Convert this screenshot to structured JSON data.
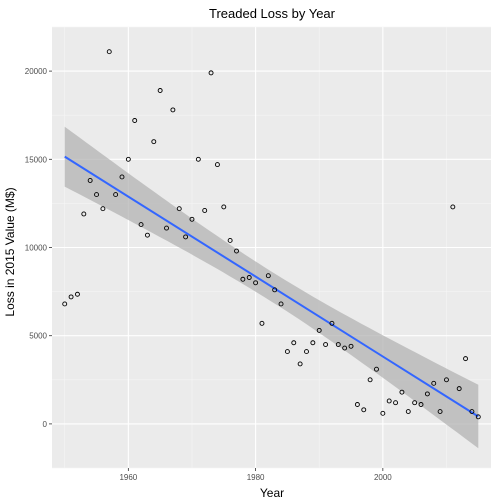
{
  "chart_data": {
    "type": "scatter",
    "title": "Treaded Loss by Year",
    "xlabel": "Year",
    "ylabel": "Loss in 2015 Value (M$)",
    "xlim": [
      1948,
      2017
    ],
    "ylim": [
      -2500,
      22500
    ],
    "xticks": [
      1960,
      1980,
      2000
    ],
    "yticks": [
      0,
      5000,
      10000,
      15000,
      20000
    ],
    "grid": true,
    "legend": "none",
    "trend": {
      "method": "linear",
      "x": [
        1950,
        2015
      ],
      "y": [
        15150,
        420
      ],
      "band_halfwidth": [
        1700,
        1800
      ],
      "band_mid_halfwidth": 850
    },
    "points": [
      {
        "x": 1950,
        "y": 6800
      },
      {
        "x": 1951,
        "y": 7200
      },
      {
        "x": 1952,
        "y": 7350
      },
      {
        "x": 1953,
        "y": 11900
      },
      {
        "x": 1954,
        "y": 13800
      },
      {
        "x": 1955,
        "y": 13000
      },
      {
        "x": 1956,
        "y": 12200
      },
      {
        "x": 1957,
        "y": 21100
      },
      {
        "x": 1958,
        "y": 13000
      },
      {
        "x": 1959,
        "y": 14000
      },
      {
        "x": 1960,
        "y": 15000
      },
      {
        "x": 1961,
        "y": 17200
      },
      {
        "x": 1962,
        "y": 11300
      },
      {
        "x": 1963,
        "y": 10700
      },
      {
        "x": 1964,
        "y": 16000
      },
      {
        "x": 1965,
        "y": 18900
      },
      {
        "x": 1966,
        "y": 11100
      },
      {
        "x": 1967,
        "y": 17800
      },
      {
        "x": 1968,
        "y": 12200
      },
      {
        "x": 1969,
        "y": 10600
      },
      {
        "x": 1970,
        "y": 11600
      },
      {
        "x": 1971,
        "y": 15000
      },
      {
        "x": 1972,
        "y": 12100
      },
      {
        "x": 1973,
        "y": 19900
      },
      {
        "x": 1974,
        "y": 14700
      },
      {
        "x": 1975,
        "y": 12300
      },
      {
        "x": 1976,
        "y": 10400
      },
      {
        "x": 1977,
        "y": 9800
      },
      {
        "x": 1978,
        "y": 8200
      },
      {
        "x": 1979,
        "y": 8300
      },
      {
        "x": 1980,
        "y": 8000
      },
      {
        "x": 1981,
        "y": 5700
      },
      {
        "x": 1982,
        "y": 8400
      },
      {
        "x": 1983,
        "y": 7600
      },
      {
        "x": 1984,
        "y": 6800
      },
      {
        "x": 1985,
        "y": 4100
      },
      {
        "x": 1986,
        "y": 4600
      },
      {
        "x": 1987,
        "y": 3400
      },
      {
        "x": 1988,
        "y": 4100
      },
      {
        "x": 1989,
        "y": 4600
      },
      {
        "x": 1990,
        "y": 5300
      },
      {
        "x": 1991,
        "y": 4500
      },
      {
        "x": 1992,
        "y": 5700
      },
      {
        "x": 1993,
        "y": 4500
      },
      {
        "x": 1994,
        "y": 4300
      },
      {
        "x": 1995,
        "y": 4400
      },
      {
        "x": 1996,
        "y": 1100
      },
      {
        "x": 1997,
        "y": 800
      },
      {
        "x": 1998,
        "y": 2500
      },
      {
        "x": 1999,
        "y": 3100
      },
      {
        "x": 2000,
        "y": 600
      },
      {
        "x": 2001,
        "y": 1300
      },
      {
        "x": 2002,
        "y": 1200
      },
      {
        "x": 2003,
        "y": 1800
      },
      {
        "x": 2004,
        "y": 700
      },
      {
        "x": 2005,
        "y": 1200
      },
      {
        "x": 2006,
        "y": 1100
      },
      {
        "x": 2007,
        "y": 1700
      },
      {
        "x": 2008,
        "y": 2300
      },
      {
        "x": 2009,
        "y": 700
      },
      {
        "x": 2010,
        "y": 2500
      },
      {
        "x": 2011,
        "y": 12300
      },
      {
        "x": 2012,
        "y": 2000
      },
      {
        "x": 2013,
        "y": 3700
      },
      {
        "x": 2014,
        "y": 700
      },
      {
        "x": 2015,
        "y": 400
      }
    ],
    "colors": {
      "panel_background": "#ebebeb",
      "grid_major": "#ffffff",
      "grid_minor": "#f5f5f5",
      "trend_line": "#3366ff",
      "confidence_band": "#b3b3b3",
      "point_stroke": "#000000",
      "tick_text": "#4d4d4d"
    }
  }
}
